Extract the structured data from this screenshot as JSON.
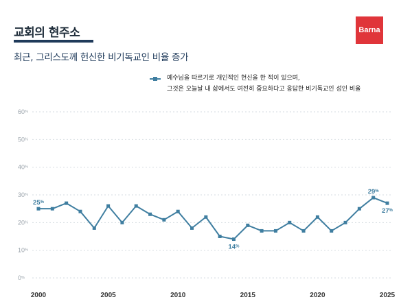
{
  "header": {
    "title": "교회의 현주소",
    "subtitle": "최근, 그리스도께 헌신한 비기독교인 비율 증가",
    "logo_text": "Barna"
  },
  "colors": {
    "series": "#3f7ea0",
    "title": "#1f2d3a",
    "accent_bar": "#1f3a5a",
    "logo_bg": "#e0353a",
    "grid": "#d5dbe0"
  },
  "chart_data": {
    "type": "line",
    "title": "",
    "xlabel": "",
    "ylabel": "",
    "x": [
      2000,
      2001,
      2002,
      2003,
      2004,
      2005,
      2006,
      2007,
      2008,
      2009,
      2010,
      2011,
      2012,
      2013,
      2014,
      2015,
      2016,
      2017,
      2018,
      2019,
      2020,
      2021,
      2022,
      2023,
      2024,
      2025
    ],
    "series": [
      {
        "name": "예수님을 따르기로 개인적인 헌신을 한 적이 있으며,\n그것은 오늘날 내 삶에서도 여전히 중요하다고 응답한 비기독교인 성인 비율",
        "values": [
          25,
          25,
          27,
          24,
          18,
          26,
          20,
          26,
          23,
          21,
          24,
          18,
          22,
          15,
          14,
          19,
          17,
          17,
          20,
          17,
          22,
          17,
          20,
          25,
          29,
          27
        ]
      }
    ],
    "ylim": [
      0,
      60
    ],
    "yticks": [
      "0%",
      "10%",
      "20%",
      "30%",
      "40%",
      "50%",
      "60%"
    ],
    "xticks": [
      "2000",
      "2005",
      "2010",
      "2015",
      "2020",
      "2025"
    ],
    "data_labels": [
      {
        "x": 2000,
        "text": "25%"
      },
      {
        "x": 2014,
        "text": "14%"
      },
      {
        "x": 2024,
        "text": "29%"
      },
      {
        "x": 2025,
        "text": "27%"
      }
    ],
    "grid": true,
    "legend_position": "top"
  }
}
